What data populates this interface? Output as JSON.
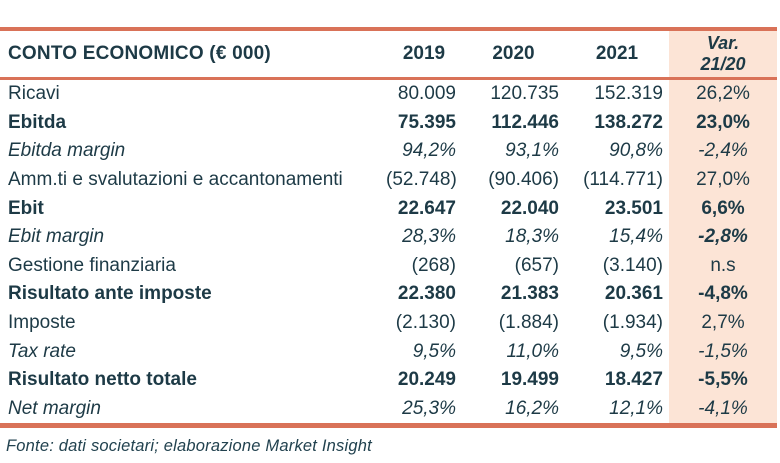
{
  "table": {
    "title": "CONTO ECONOMICO (€ 000)",
    "columns": [
      "2019",
      "2020",
      "2021"
    ],
    "var_header": {
      "line1": "Var.",
      "line2": "21/20"
    },
    "rows": [
      {
        "label": "Ricavi",
        "style": "normal",
        "values": [
          "80.009",
          "120.735",
          "152.319"
        ],
        "var": "26,2%",
        "var_style": "normal"
      },
      {
        "label": "Ebitda",
        "style": "bold",
        "values": [
          "75.395",
          "112.446",
          "138.272"
        ],
        "var": "23,0%",
        "var_style": "bold"
      },
      {
        "label": "Ebitda margin",
        "style": "italic",
        "values": [
          "94,2%",
          "93,1%",
          "90,8%"
        ],
        "var": "-2,4%",
        "var_style": "normal"
      },
      {
        "label": "Amm.ti e svalutazioni e accantonamenti",
        "style": "normal",
        "values": [
          "(52.748)",
          "(90.406)",
          "(114.771)"
        ],
        "var": "27,0%",
        "var_style": "normal"
      },
      {
        "label": "Ebit",
        "style": "bold",
        "values": [
          "22.647",
          "22.040",
          "23.501"
        ],
        "var": "6,6%",
        "var_style": "bold"
      },
      {
        "label": "Ebit margin",
        "style": "italic",
        "values": [
          "28,3%",
          "18,3%",
          "15,4%"
        ],
        "var": "-2,8%",
        "var_style": "bold"
      },
      {
        "label": "Gestione finanziaria",
        "style": "normal",
        "values": [
          "(268)",
          "(657)",
          "(3.140)"
        ],
        "var": "n.s",
        "var_style": "normal"
      },
      {
        "label": "Risultato ante imposte",
        "style": "bold",
        "values": [
          "22.380",
          "21.383",
          "20.361"
        ],
        "var": "-4,8%",
        "var_style": "bold"
      },
      {
        "label": "Imposte",
        "style": "normal",
        "values": [
          "(2.130)",
          "(1.884)",
          "(1.934)"
        ],
        "var": "2,7%",
        "var_style": "normal"
      },
      {
        "label": "Tax rate",
        "style": "italic",
        "values": [
          "9,5%",
          "11,0%",
          "9,5%"
        ],
        "var": "-1,5%",
        "var_style": "normal"
      },
      {
        "label": "Risultato netto totale",
        "style": "bold",
        "values": [
          "20.249",
          "19.499",
          "18.427"
        ],
        "var": "-5,5%",
        "var_style": "bold"
      },
      {
        "label": "Net margin",
        "style": "italic",
        "values": [
          "25,3%",
          "16,2%",
          "12,1%"
        ],
        "var": "-4,1%",
        "var_style": "normal"
      }
    ]
  },
  "footer": {
    "source": "Fonte: dati societari; elaborazione Market Insight"
  },
  "colors": {
    "accent_line": "#d97258",
    "var_column_bg": "#fce4d6",
    "text": "#1d3a46"
  }
}
